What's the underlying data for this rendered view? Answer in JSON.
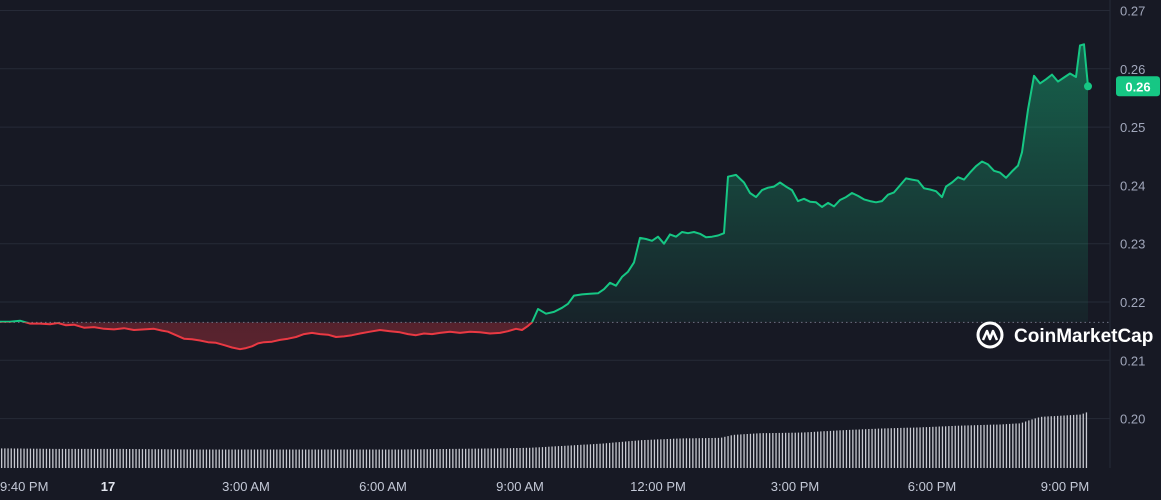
{
  "chart_data": {
    "type": "area",
    "x_ticks": [
      "9:40 PM",
      "17",
      "3:00 AM",
      "6:00 AM",
      "9:00 AM",
      "12:00 PM",
      "3:00 PM",
      "6:00 PM",
      "9:00 PM"
    ],
    "y_ticks": [
      "0.27",
      "0.26",
      "0.25",
      "0.24",
      "0.23",
      "0.22",
      "0.21",
      "0.20"
    ],
    "ylim": [
      0.1917,
      0.2718
    ],
    "baseline": 0.2165,
    "current_price_label": "0.26",
    "current_price": 0.257,
    "grid": true,
    "colors": {
      "up": "#16c784",
      "down": "#ea3943",
      "volume": "#e6e8ee",
      "background": "#171924"
    },
    "series": [
      {
        "values": [
          [
            0,
            0.2166
          ],
          [
            10,
            0.2166
          ],
          [
            20,
            0.2168
          ],
          [
            30,
            0.2163
          ],
          [
            40,
            0.2163
          ],
          [
            50,
            0.2162
          ],
          [
            58,
            0.2164
          ],
          [
            66,
            0.216
          ],
          [
            74,
            0.2161
          ],
          [
            84,
            0.2156
          ],
          [
            94,
            0.2157
          ],
          [
            104,
            0.2154
          ],
          [
            114,
            0.2153
          ],
          [
            124,
            0.2155
          ],
          [
            134,
            0.2152
          ],
          [
            144,
            0.2153
          ],
          [
            154,
            0.2154
          ],
          [
            162,
            0.2151
          ],
          [
            168,
            0.2149
          ],
          [
            176,
            0.2143
          ],
          [
            184,
            0.2137
          ],
          [
            192,
            0.2136
          ],
          [
            200,
            0.2134
          ],
          [
            208,
            0.2131
          ],
          [
            216,
            0.213
          ],
          [
            224,
            0.2126
          ],
          [
            232,
            0.2122
          ],
          [
            240,
            0.2119
          ],
          [
            246,
            0.2121
          ],
          [
            252,
            0.2124
          ],
          [
            258,
            0.2129
          ],
          [
            264,
            0.2131
          ],
          [
            272,
            0.2132
          ],
          [
            280,
            0.2135
          ],
          [
            288,
            0.2137
          ],
          [
            296,
            0.214
          ],
          [
            304,
            0.2145
          ],
          [
            312,
            0.2147
          ],
          [
            320,
            0.2145
          ],
          [
            328,
            0.2144
          ],
          [
            336,
            0.214
          ],
          [
            344,
            0.2141
          ],
          [
            352,
            0.2143
          ],
          [
            360,
            0.2146
          ],
          [
            370,
            0.2149
          ],
          [
            380,
            0.2152
          ],
          [
            390,
            0.215
          ],
          [
            400,
            0.2148
          ],
          [
            408,
            0.2145
          ],
          [
            416,
            0.2143
          ],
          [
            424,
            0.2146
          ],
          [
            432,
            0.2145
          ],
          [
            440,
            0.2147
          ],
          [
            450,
            0.2149
          ],
          [
            460,
            0.2147
          ],
          [
            470,
            0.2149
          ],
          [
            480,
            0.2148
          ],
          [
            490,
            0.2146
          ],
          [
            500,
            0.2147
          ],
          [
            508,
            0.215
          ],
          [
            516,
            0.2154
          ],
          [
            522,
            0.2152
          ],
          [
            528,
            0.2159
          ],
          [
            532,
            0.2165
          ],
          [
            538,
            0.2188
          ],
          [
            546,
            0.218
          ],
          [
            554,
            0.2183
          ],
          [
            562,
            0.219
          ],
          [
            568,
            0.2197
          ],
          [
            574,
            0.2211
          ],
          [
            582,
            0.2213
          ],
          [
            590,
            0.2214
          ],
          [
            598,
            0.2215
          ],
          [
            604,
            0.2222
          ],
          [
            610,
            0.2233
          ],
          [
            616,
            0.2228
          ],
          [
            622,
            0.2243
          ],
          [
            628,
            0.2252
          ],
          [
            634,
            0.2268
          ],
          [
            640,
            0.231
          ],
          [
            646,
            0.2308
          ],
          [
            652,
            0.2305
          ],
          [
            658,
            0.2312
          ],
          [
            664,
            0.23
          ],
          [
            670,
            0.2316
          ],
          [
            676,
            0.2312
          ],
          [
            682,
            0.232
          ],
          [
            688,
            0.2318
          ],
          [
            694,
            0.232
          ],
          [
            700,
            0.2317
          ],
          [
            706,
            0.2311
          ],
          [
            712,
            0.2312
          ],
          [
            718,
            0.2314
          ],
          [
            724,
            0.2318
          ],
          [
            728,
            0.2415
          ],
          [
            736,
            0.2418
          ],
          [
            744,
            0.2405
          ],
          [
            750,
            0.2387
          ],
          [
            756,
            0.238
          ],
          [
            762,
            0.2392
          ],
          [
            768,
            0.2396
          ],
          [
            774,
            0.2398
          ],
          [
            780,
            0.2405
          ],
          [
            786,
            0.2398
          ],
          [
            792,
            0.2392
          ],
          [
            798,
            0.2373
          ],
          [
            804,
            0.2377
          ],
          [
            810,
            0.2372
          ],
          [
            816,
            0.2371
          ],
          [
            822,
            0.2363
          ],
          [
            828,
            0.237
          ],
          [
            834,
            0.2364
          ],
          [
            840,
            0.2375
          ],
          [
            846,
            0.238
          ],
          [
            852,
            0.2387
          ],
          [
            858,
            0.2382
          ],
          [
            864,
            0.2376
          ],
          [
            870,
            0.2373
          ],
          [
            876,
            0.2371
          ],
          [
            882,
            0.2373
          ],
          [
            888,
            0.2384
          ],
          [
            894,
            0.2388
          ],
          [
            900,
            0.24
          ],
          [
            906,
            0.2412
          ],
          [
            912,
            0.241
          ],
          [
            918,
            0.2408
          ],
          [
            924,
            0.2395
          ],
          [
            930,
            0.2393
          ],
          [
            936,
            0.239
          ],
          [
            942,
            0.238
          ],
          [
            946,
            0.2398
          ],
          [
            952,
            0.2405
          ],
          [
            958,
            0.2414
          ],
          [
            964,
            0.241
          ],
          [
            970,
            0.2422
          ],
          [
            976,
            0.2433
          ],
          [
            982,
            0.2441
          ],
          [
            988,
            0.2436
          ],
          [
            994,
            0.2425
          ],
          [
            1000,
            0.2422
          ],
          [
            1006,
            0.2413
          ],
          [
            1012,
            0.2424
          ],
          [
            1018,
            0.2434
          ],
          [
            1022,
            0.2457
          ],
          [
            1028,
            0.253
          ],
          [
            1034,
            0.2588
          ],
          [
            1040,
            0.2575
          ],
          [
            1046,
            0.2582
          ],
          [
            1052,
            0.259
          ],
          [
            1058,
            0.2578
          ],
          [
            1064,
            0.2585
          ],
          [
            1070,
            0.2592
          ],
          [
            1076,
            0.2586
          ],
          [
            1080,
            0.264
          ],
          [
            1084,
            0.2642
          ],
          [
            1088,
            0.257
          ]
        ]
      }
    ],
    "volume": [
      [
        0,
        0.1949
      ],
      [
        60,
        0.1948
      ],
      [
        120,
        0.1948
      ],
      [
        200,
        0.1947
      ],
      [
        300,
        0.1947
      ],
      [
        400,
        0.1947
      ],
      [
        500,
        0.1949
      ],
      [
        530,
        0.195
      ],
      [
        560,
        0.1953
      ],
      [
        600,
        0.1957
      ],
      [
        640,
        0.1963
      ],
      [
        680,
        0.1966
      ],
      [
        720,
        0.1967
      ],
      [
        732,
        0.1972
      ],
      [
        760,
        0.1975
      ],
      [
        800,
        0.1976
      ],
      [
        840,
        0.198
      ],
      [
        880,
        0.1983
      ],
      [
        920,
        0.1985
      ],
      [
        960,
        0.1988
      ],
      [
        1000,
        0.199
      ],
      [
        1020,
        0.1992
      ],
      [
        1030,
        0.1998
      ],
      [
        1040,
        0.2003
      ],
      [
        1060,
        0.2005
      ],
      [
        1080,
        0.2007
      ],
      [
        1088,
        0.2012
      ]
    ],
    "x_tick_positions": [
      0,
      108,
      246,
      383,
      520,
      658,
      795,
      932,
      1065
    ]
  },
  "watermark": {
    "brand": "CoinMarketCap",
    "icon": "coinmarketcap-logo-icon"
  }
}
